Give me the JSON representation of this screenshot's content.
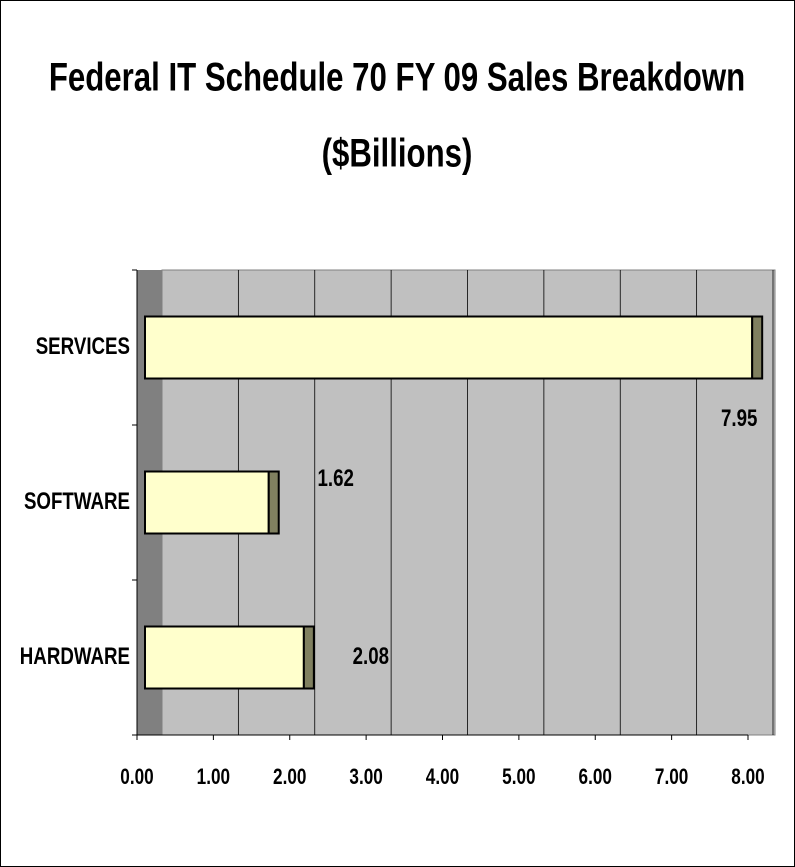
{
  "chart_data": {
    "type": "bar",
    "orientation": "horizontal",
    "title": "Federal IT Schedule 70 FY 09 Sales Breakdown",
    "subtitle": "($Billions)",
    "categories": [
      "SERVICES",
      "SOFTWARE",
      "HARDWARE"
    ],
    "values": [
      7.95,
      1.62,
      2.08
    ],
    "color": "#ffffcc",
    "xlim": [
      0,
      8
    ],
    "xticks": [
      {
        "value": 0,
        "label": "0.00"
      },
      {
        "value": 1,
        "label": "1.00"
      },
      {
        "value": 2,
        "label": "2.00"
      },
      {
        "value": 3,
        "label": "3.00"
      },
      {
        "value": 4,
        "label": "4.00"
      },
      {
        "value": 5,
        "label": "5.00"
      },
      {
        "value": 6,
        "label": "6.00"
      },
      {
        "value": 7,
        "label": "7.00"
      },
      {
        "value": 8,
        "label": "8.00"
      }
    ],
    "grid": true
  }
}
